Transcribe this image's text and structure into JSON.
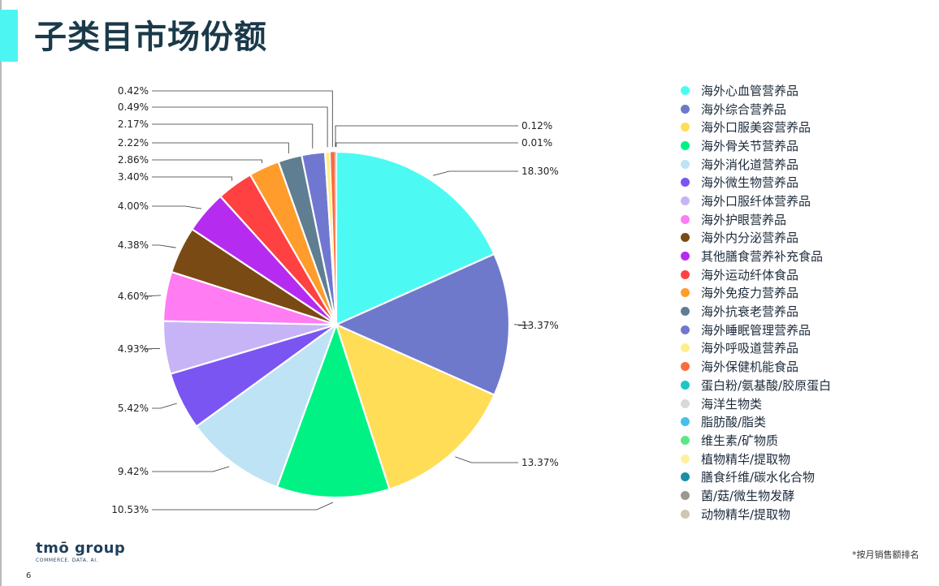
{
  "page": {
    "title": "子类目市场份额",
    "footnote": "*按月销售额排名",
    "page_number": "6",
    "logo": {
      "main": "tmō group",
      "sub": "COMMERCE. DATA. AI."
    }
  },
  "chart_data": {
    "type": "pie",
    "title": "",
    "legend_position": "right",
    "slices": [
      {
        "name": "海外心血管营养品",
        "value": 18.3,
        "label": "18.30%",
        "color": "#4dfaf3"
      },
      {
        "name": "海外综合营养品",
        "value": 13.37,
        "label": "13.37%",
        "color": "#6f79cc"
      },
      {
        "name": "海外口服美容营养品",
        "value": 13.37,
        "label": "13.37%",
        "color": "#ffdd57"
      },
      {
        "name": "海外骨关节营养品",
        "value": 10.53,
        "label": "10.53%",
        "color": "#00f284"
      },
      {
        "name": "海外消化道营养品",
        "value": 9.42,
        "label": "9.42%",
        "color": "#bde3f5"
      },
      {
        "name": "海外微生物营养品",
        "value": 5.42,
        "label": "5.42%",
        "color": "#7a55f2"
      },
      {
        "name": "海外口服纤体营养品",
        "value": 4.93,
        "label": "4.93%",
        "color": "#c6b4f7"
      },
      {
        "name": "海外护眼营养品",
        "value": 4.6,
        "label": "4.60%",
        "color": "#ff7cf2"
      },
      {
        "name": "海外内分泌营养品",
        "value": 4.38,
        "label": "4.38%",
        "color": "#7a4a14"
      },
      {
        "name": "其他膳食营养补充食品",
        "value": 4.0,
        "label": "4.00%",
        "color": "#b52cf0"
      },
      {
        "name": "海外运动纤体食品",
        "value": 3.4,
        "label": "3.40%",
        "color": "#ff4141"
      },
      {
        "name": "海外免疫力营养品",
        "value": 2.86,
        "label": "2.86%",
        "color": "#ff9c2b"
      },
      {
        "name": "海外抗衰老营养品",
        "value": 2.22,
        "label": "2.22%",
        "color": "#5f7e91"
      },
      {
        "name": "海外睡眠管理营养品",
        "value": 2.17,
        "label": "2.17%",
        "color": "#7077d0"
      },
      {
        "name": "海外呼吸道营养品",
        "value": 0.49,
        "label": "0.49%",
        "color": "#ffef8a"
      },
      {
        "name": "海外保健机能食品",
        "value": 0.42,
        "label": "0.42%",
        "color": "#ff6a3d"
      },
      {
        "name": "蛋白粉/氨基酸/胶原蛋白",
        "value": 0.12,
        "label": "0.12%",
        "color": "#1ec8c2"
      },
      {
        "name": "海洋生物类",
        "value": 0.01,
        "label": "0.01%",
        "color": "#d9d9d9"
      },
      {
        "name": "脂肪酸/脂类",
        "value": 0,
        "label": "",
        "color": "#45c0e8"
      },
      {
        "name": "维生素/矿物质",
        "value": 0,
        "label": "",
        "color": "#5de58a"
      },
      {
        "name": "植物精华/提取物",
        "value": 0,
        "label": "",
        "color": "#fff0a0"
      },
      {
        "name": "膳食纤维/碳水化合物",
        "value": 0,
        "label": "",
        "color": "#1b8fa8"
      },
      {
        "name": "菌/菇/微生物发酵",
        "value": 0,
        "label": "",
        "color": "#9c9a8e"
      },
      {
        "name": "动物精华/提取物",
        "value": 0,
        "label": "",
        "color": "#d3c4b4"
      }
    ]
  }
}
